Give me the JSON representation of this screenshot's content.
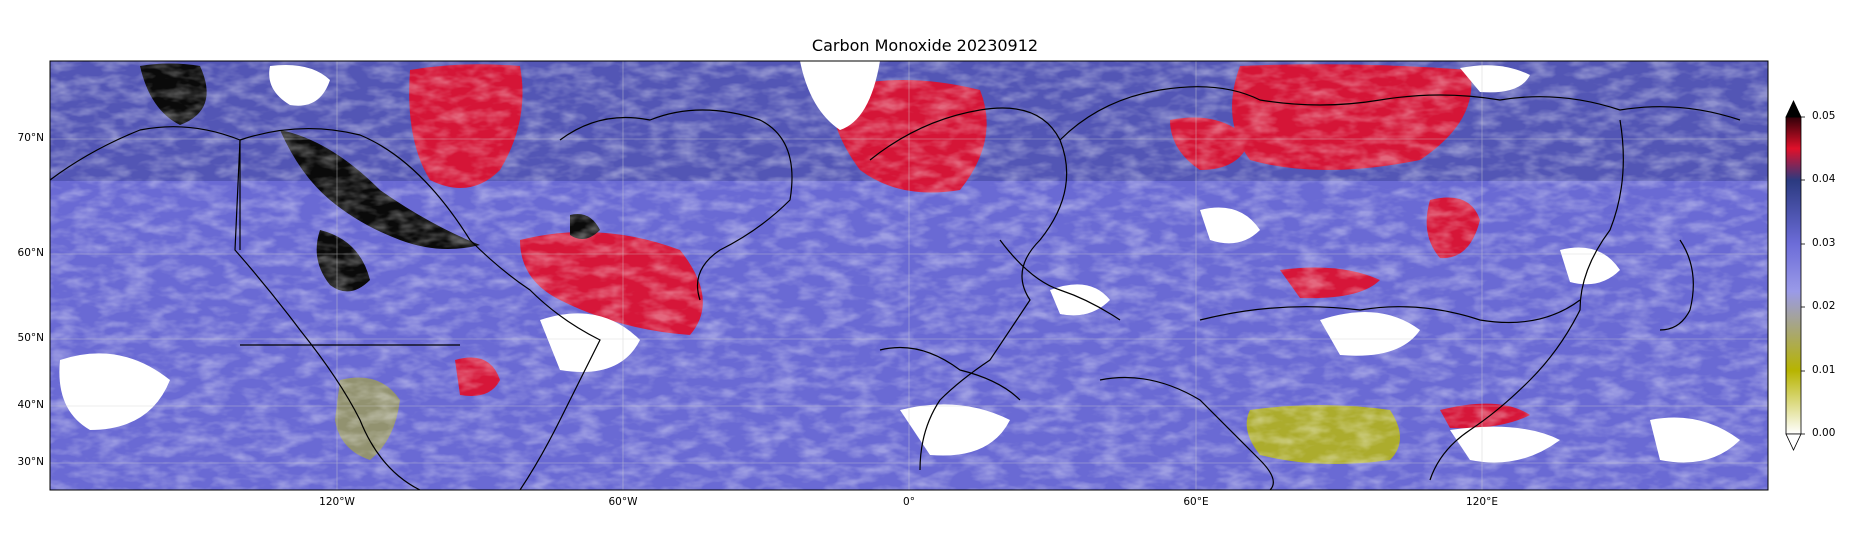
{
  "title": "Carbon Monoxide 20230912",
  "map": {
    "projection": "Mercator",
    "lat_labels": [
      "70°N",
      "60°N",
      "50°N",
      "40°N",
      "30°N"
    ],
    "lon_labels": [
      "120°W",
      "60°W",
      "0°",
      "60°E",
      "120°E"
    ],
    "colors": {
      "no_data": "#ffffff",
      "land_outline": "#000000",
      "low_background": "#6b6bd8",
      "mid": "#3a3f8c",
      "high": "#e0102a",
      "extreme": "#000000",
      "very_low": "#b4b41a"
    }
  },
  "colorbar": {
    "ticks": [
      "0.05",
      "0.04",
      "0.03",
      "0.02",
      "0.01",
      "0.00"
    ],
    "extend": "both",
    "colors": [
      "#ffffff",
      "#b7b400",
      "#8f8fe6",
      "#3a3f8c",
      "#e0102a",
      "#000000"
    ]
  }
}
